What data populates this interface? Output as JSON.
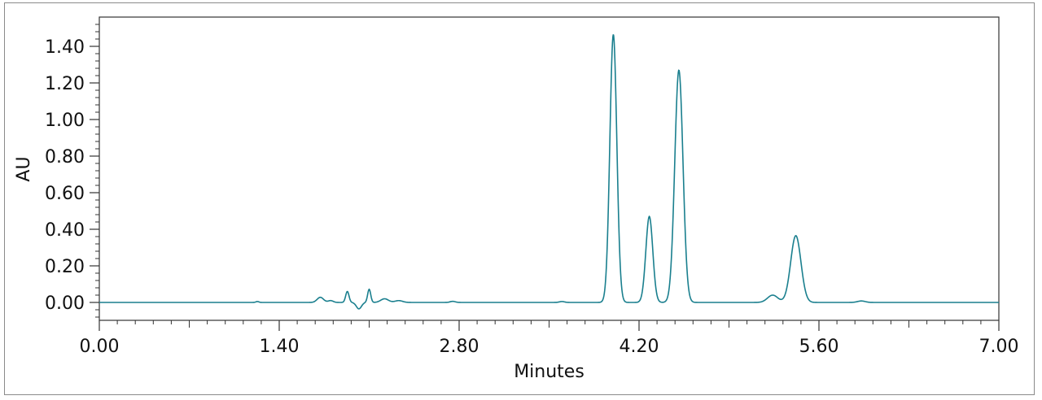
{
  "chart_data": {
    "type": "line",
    "title": "",
    "xlabel": "Minutes",
    "ylabel": "AU",
    "xlim": [
      0.0,
      7.0
    ],
    "ylim": [
      -0.1,
      1.55
    ],
    "x_ticks": [
      "0.00",
      "1.40",
      "2.80",
      "4.20",
      "5.60",
      "7.00"
    ],
    "x_tick_values": [
      0.0,
      1.4,
      2.8,
      4.2,
      5.6,
      7.0
    ],
    "y_ticks": [
      "0.00",
      "0.20",
      "0.40",
      "0.60",
      "0.80",
      "1.00",
      "1.20",
      "1.40"
    ],
    "y_tick_values": [
      0.0,
      0.2,
      0.4,
      0.6,
      0.8,
      1.0,
      1.2,
      1.4
    ],
    "grid": false,
    "legend": "none",
    "line_color": "#1a7f8e",
    "peaks": [
      {
        "rt": 1.23,
        "height": 0.005,
        "width": 0.012
      },
      {
        "rt": 1.72,
        "height": 0.028,
        "width": 0.025
      },
      {
        "rt": 1.8,
        "height": 0.01,
        "width": 0.02
      },
      {
        "rt": 1.93,
        "height": 0.06,
        "width": 0.013
      },
      {
        "rt": 2.02,
        "height": -0.035,
        "width": 0.02
      },
      {
        "rt": 2.1,
        "height": 0.072,
        "width": 0.012
      },
      {
        "rt": 2.22,
        "height": 0.02,
        "width": 0.03
      },
      {
        "rt": 2.33,
        "height": 0.01,
        "width": 0.03
      },
      {
        "rt": 2.75,
        "height": 0.006,
        "width": 0.02
      },
      {
        "rt": 3.6,
        "height": 0.005,
        "width": 0.02
      },
      {
        "rt": 4.0,
        "height": 1.465,
        "width": 0.027
      },
      {
        "rt": 4.28,
        "height": 0.47,
        "width": 0.027
      },
      {
        "rt": 4.51,
        "height": 1.27,
        "width": 0.032
      },
      {
        "rt": 5.24,
        "height": 0.04,
        "width": 0.04
      },
      {
        "rt": 5.42,
        "height": 0.365,
        "width": 0.04
      },
      {
        "rt": 5.93,
        "height": 0.008,
        "width": 0.03
      }
    ]
  }
}
